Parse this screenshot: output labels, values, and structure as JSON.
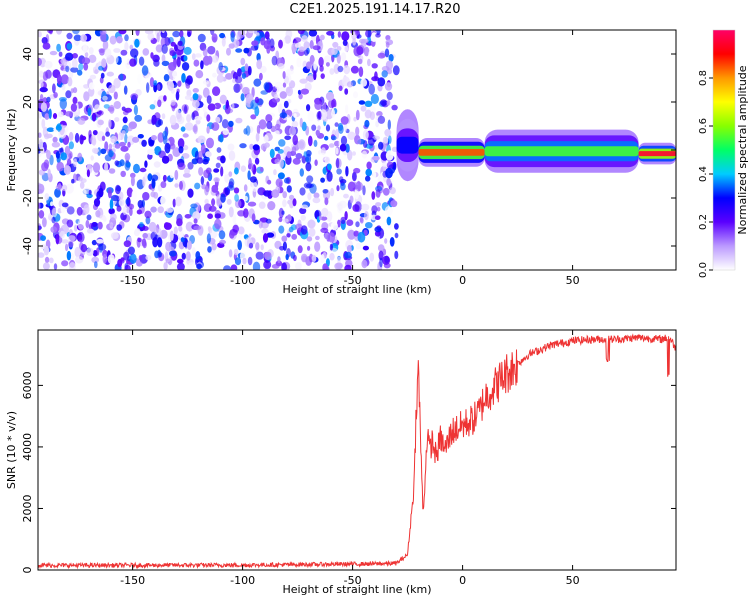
{
  "page_title": "C2E1.2025.191.14.17.R20",
  "chart_data": [
    {
      "type": "heatmap",
      "title": "",
      "xlabel": "Height of straight line (km)",
      "ylabel": "Frequency (Hz)",
      "xlim": [
        -193,
        97
      ],
      "ylim": [
        -50,
        50
      ],
      "xticks": [
        -150,
        -100,
        -50,
        0,
        50
      ],
      "yticks": [
        -40,
        -20,
        0,
        20,
        40
      ],
      "noise_region": {
        "x_from": -193,
        "x_to": -30,
        "f_from": -50,
        "f_to": 50
      },
      "carrier_segments": [
        {
          "x_from": -30,
          "x_to": -20,
          "f_center": 2,
          "width_hz": 10,
          "amplitude": 0.3
        },
        {
          "x_from": -20,
          "x_to": 10,
          "f_center": -1,
          "width_hz": 4,
          "amplitude": 0.85
        },
        {
          "x_from": 10,
          "x_to": 80,
          "f_center": -0.5,
          "width_hz": 6,
          "amplitude": 0.55
        },
        {
          "x_from": 80,
          "x_to": 97,
          "f_center": -1.5,
          "width_hz": 3,
          "amplitude": 0.95
        }
      ],
      "colorbar": {
        "label": "Normalized spectral amplitude",
        "range": [
          0,
          1
        ],
        "ticks": [
          "0.0",
          "0.2",
          "0.4",
          "0.6",
          "0.8"
        ],
        "tick_values": [
          0,
          0.2,
          0.4,
          0.6,
          0.8
        ],
        "colors": [
          "#ffffff",
          "#bb99ff",
          "#5a00ff",
          "#0000ff",
          "#00ccff",
          "#00ff66",
          "#88ff00",
          "#ffff00",
          "#ff9900",
          "#ff0000",
          "#ff0066"
        ]
      }
    },
    {
      "type": "line",
      "title": "",
      "xlabel": "Height of straight line (km)",
      "ylabel": "SNR (10 * v/v)",
      "xlim": [
        -193,
        97
      ],
      "ylim": [
        0,
        7800
      ],
      "xticks": [
        -150,
        -100,
        -50,
        0,
        50
      ],
      "yticks": [
        0,
        2000,
        4000,
        6000
      ],
      "line_color": "#ee3333",
      "series": [
        {
          "x": [
            -193,
            -100,
            -40,
            -30,
            -25,
            -22,
            -21,
            -20,
            -19,
            -18,
            -17,
            -16,
            -15,
            -14,
            -12,
            -10,
            -8,
            -5,
            0,
            5,
            8,
            10,
            15,
            20,
            25,
            30,
            35,
            40,
            50,
            60,
            70,
            80,
            90,
            94,
            97
          ],
          "y": [
            150,
            160,
            200,
            220,
            500,
            2800,
            5500,
            6500,
            4000,
            1800,
            3000,
            4600,
            3800,
            4200,
            3700,
            4300,
            3900,
            4500,
            4700,
            4900,
            5200,
            5600,
            6000,
            6400,
            6700,
            7000,
            7150,
            7300,
            7450,
            7500,
            7500,
            7550,
            7500,
            7550,
            7200
          ]
        }
      ]
    }
  ]
}
